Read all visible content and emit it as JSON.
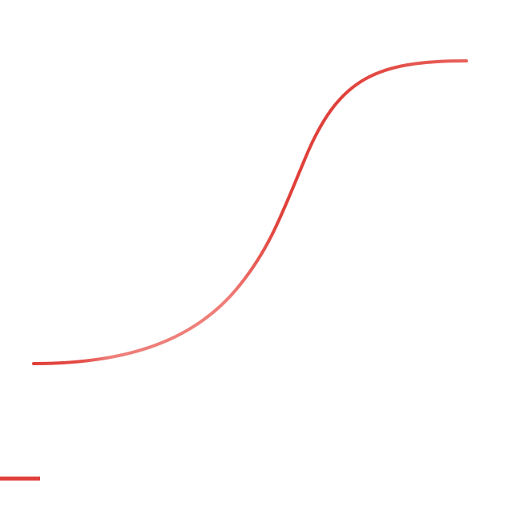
{
  "diagram": {
    "shape": "s-curve",
    "stroke_colors": {
      "dark": "#e0403a",
      "mid": "#e8615b",
      "light": "#ee7f7a"
    }
  },
  "legend": {
    "swatch_color": "#e0403a"
  }
}
